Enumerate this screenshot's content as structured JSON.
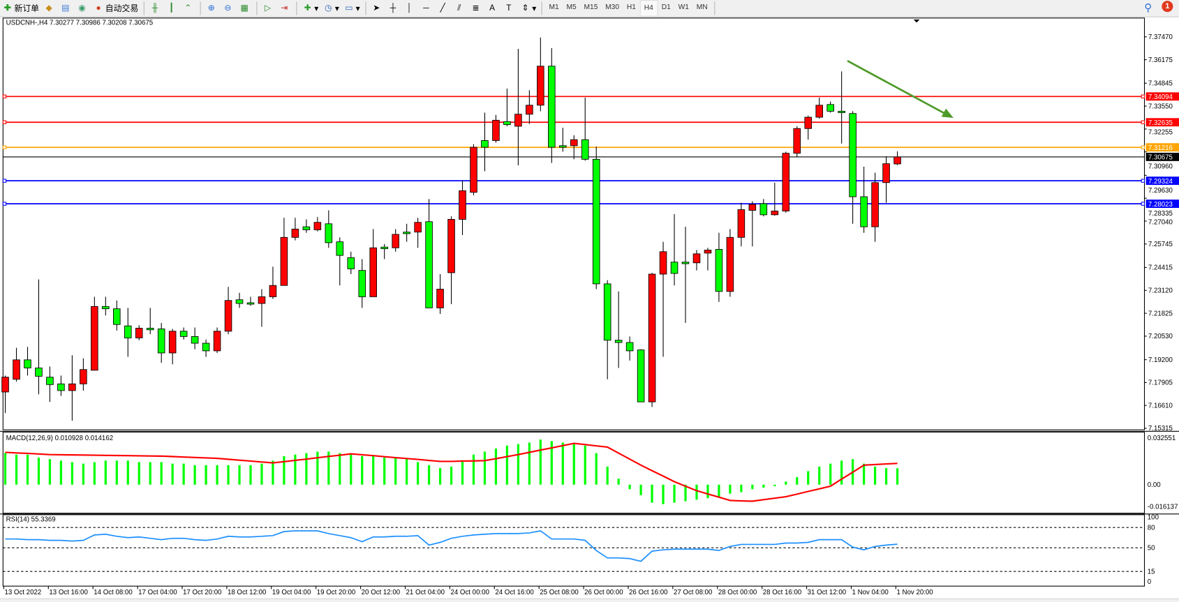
{
  "toolbar": {
    "new_order": "新订单",
    "auto_trading": "自动交易",
    "timeframes": [
      "M1",
      "M5",
      "M15",
      "M30",
      "H1",
      "H4",
      "D1",
      "W1",
      "MN"
    ],
    "active_timeframe": "H4",
    "notification_count": "1",
    "icons": [
      "new-order-icon",
      "market-watch-icon",
      "data-window-icon",
      "signals-icon",
      "auto-trading-icon",
      "bar-chart-icon",
      "candlestick-icon",
      "line-chart-icon",
      "zoom-in-icon",
      "zoom-out-icon",
      "tile-windows-icon",
      "auto-scroll-icon",
      "chart-shift-icon",
      "indicators-icon",
      "periods-icon",
      "templates-icon",
      "cursor-icon",
      "crosshair-icon",
      "vertical-line-icon",
      "horizontal-line-icon",
      "trendline-icon",
      "equidistant-channel-icon",
      "fibonacci-icon",
      "text-icon",
      "text-label-icon",
      "arrows-icon",
      "search-icon",
      "notification-icon"
    ]
  },
  "chart": {
    "header": "USDCNH-,H4  7.30277 7.30986 7.30208 7.30675",
    "price_ticks": [
      "7.37470",
      "7.36175",
      "7.34845",
      "7.33550",
      "7.32255",
      "7.30960",
      "7.29630",
      "7.28335",
      "7.27040",
      "7.25745",
      "7.24415",
      "7.23120",
      "7.21825",
      "7.20530",
      "7.19200",
      "7.17905",
      "7.16610",
      "7.15315"
    ],
    "price_range": [
      7.15315,
      7.3747
    ],
    "colors": {
      "up": "#ff0000",
      "down": "#00ff00",
      "wick": "#000000",
      "trend_arrow": "#4e9a28"
    },
    "levels": [
      {
        "price": "7.34094",
        "color": "#ff0000"
      },
      {
        "price": "7.32635",
        "color": "#ff0000"
      },
      {
        "price": "7.31216",
        "color": "#ffa500"
      },
      {
        "price": "7.29324",
        "color": "#0000ff"
      },
      {
        "price": "7.28023",
        "color": "#0000ff"
      }
    ],
    "current_price": "7.30675",
    "trend_arrow": {
      "from_price": 7.3611,
      "to_price": 7.3288
    },
    "time_labels": [
      "13 Oct 2022",
      "13 Oct 16:00",
      "14 Oct 08:00",
      "17 Oct 04:00",
      "17 Oct 20:00",
      "18 Oct 12:00",
      "19 Oct 04:00",
      "19 Oct 20:00",
      "20 Oct 12:00",
      "21 Oct 04:00",
      "24 Oct 00:00",
      "24 Oct 16:00",
      "25 Oct 08:00",
      "26 Oct 00:00",
      "26 Oct 16:00",
      "27 Oct 08:00",
      "28 Oct 00:00",
      "28 Oct 16:00",
      "31 Oct 12:00",
      "1 Nov 04:00",
      "1 Nov 20:00"
    ]
  },
  "chart_data": {
    "type": "candlestick",
    "ohlc": [
      [
        7.1737,
        7.183,
        7.1618,
        7.1821
      ],
      [
        7.1809,
        7.1987,
        7.1796,
        7.1919
      ],
      [
        7.1919,
        7.1992,
        7.183,
        7.1873
      ],
      [
        7.1873,
        7.2374,
        7.1724,
        7.1826
      ],
      [
        7.1821,
        7.1881,
        7.1681,
        7.1779
      ],
      [
        7.1783,
        7.183,
        7.1715,
        7.1745
      ],
      [
        7.1745,
        7.1945,
        7.1575,
        7.1783
      ],
      [
        7.1783,
        7.1928,
        7.1745,
        7.1864
      ],
      [
        7.186,
        7.2276,
        7.186,
        7.2221
      ],
      [
        7.2221,
        7.2276,
        7.217,
        7.2208
      ],
      [
        7.2208,
        7.2255,
        7.2085,
        7.2119
      ],
      [
        7.2111,
        7.2213,
        7.1936,
        7.2043
      ],
      [
        7.2043,
        7.2115,
        7.203,
        7.2098
      ],
      [
        7.2098,
        7.2213,
        7.2064,
        7.2089
      ],
      [
        7.2094,
        7.2128,
        7.1902,
        7.1958
      ],
      [
        7.1958,
        7.2094,
        7.1894,
        7.2081
      ],
      [
        7.2081,
        7.2102,
        7.2034,
        7.2051
      ],
      [
        7.2051,
        7.2102,
        7.1979,
        7.2013
      ],
      [
        7.2013,
        7.2034,
        7.1936,
        7.197
      ],
      [
        7.197,
        7.2102,
        7.1958,
        7.2081
      ],
      [
        7.2081,
        7.2332,
        7.2064,
        7.2255
      ],
      [
        7.2259,
        7.2298,
        7.2213,
        7.2238
      ],
      [
        7.2242,
        7.2276,
        7.2225,
        7.2234
      ],
      [
        7.2238,
        7.2319,
        7.2106,
        7.2276
      ],
      [
        7.2276,
        7.2446,
        7.2264,
        7.234
      ],
      [
        7.234,
        7.2723,
        7.234,
        7.2612
      ],
      [
        7.2612,
        7.2723,
        7.2595,
        7.2659
      ],
      [
        7.2672,
        7.2714,
        7.2638,
        7.2655
      ],
      [
        7.2655,
        7.2727,
        7.2646,
        7.2697
      ],
      [
        7.2689,
        7.2765,
        7.2553,
        7.2582
      ],
      [
        7.2587,
        7.2612,
        7.234,
        7.251
      ],
      [
        7.2497,
        7.2531,
        7.2404,
        7.2434
      ],
      [
        7.2425,
        7.2489,
        7.2213,
        7.2276
      ],
      [
        7.2276,
        7.2659,
        7.2276,
        7.2553
      ],
      [
        7.2557,
        7.2574,
        7.2489,
        7.2548
      ],
      [
        7.2553,
        7.2659,
        7.2531,
        7.2629
      ],
      [
        7.2642,
        7.2689,
        7.2587,
        7.2633
      ],
      [
        7.2642,
        7.2723,
        7.2553,
        7.2697
      ],
      [
        7.2701,
        7.2829,
        7.2213,
        7.2213
      ],
      [
        7.2213,
        7.2404,
        7.2179,
        7.2319
      ],
      [
        7.2412,
        7.2731,
        7.2234,
        7.2714
      ],
      [
        7.2714,
        7.2935,
        7.2625,
        7.2876
      ],
      [
        7.2867,
        7.3139,
        7.285,
        7.3122
      ],
      [
        7.316,
        7.3318,
        7.2986,
        7.3122
      ],
      [
        7.316,
        7.3305,
        7.3148,
        7.3275
      ],
      [
        7.3267,
        7.3454,
        7.3241,
        7.325
      ],
      [
        7.3241,
        7.3679,
        7.302,
        7.3309
      ],
      [
        7.3309,
        7.3445,
        7.3254,
        7.336
      ],
      [
        7.336,
        7.3743,
        7.3326,
        7.3581
      ],
      [
        7.3581,
        7.3683,
        7.3033,
        7.3122
      ],
      [
        7.3131,
        7.3233,
        7.3097,
        7.3122
      ],
      [
        7.3131,
        7.319,
        7.3054,
        7.3165
      ],
      [
        7.3165,
        7.3403,
        7.3046,
        7.3054
      ],
      [
        7.3054,
        7.3126,
        7.2319,
        7.2349
      ],
      [
        7.2349,
        7.237,
        7.1809,
        7.203
      ],
      [
        7.203,
        7.2306,
        7.1873,
        7.2017
      ],
      [
        7.2017,
        7.2051,
        7.1915,
        7.197
      ],
      [
        7.1975,
        7.1979,
        7.1681,
        7.1681
      ],
      [
        7.1681,
        7.2412,
        7.1652,
        7.2404
      ],
      [
        7.2404,
        7.2587,
        7.1936,
        7.2531
      ],
      [
        7.2472,
        7.2744,
        7.234,
        7.2408
      ],
      [
        7.2472,
        7.2672,
        7.2128,
        7.2463
      ],
      [
        7.2468,
        7.254,
        7.2425,
        7.2519
      ],
      [
        7.2523,
        7.2553,
        7.2425,
        7.254
      ],
      [
        7.2544,
        7.2638,
        7.2247,
        7.2306
      ],
      [
        7.2306,
        7.2659,
        7.2276,
        7.2612
      ],
      [
        7.2612,
        7.2808,
        7.2561,
        7.2769
      ],
      [
        7.2765,
        7.2816,
        7.2561,
        7.2799
      ],
      [
        7.2803,
        7.2829,
        7.2731,
        7.274
      ],
      [
        7.274,
        7.2922,
        7.2735,
        7.2761
      ],
      [
        7.2761,
        7.3097,
        7.2752,
        7.3088
      ],
      [
        7.3088,
        7.3241,
        7.3067,
        7.3228
      ],
      [
        7.3228,
        7.3301,
        7.3165,
        7.3292
      ],
      [
        7.3292,
        7.3403,
        7.3284,
        7.336
      ],
      [
        7.3364,
        7.3381,
        7.3318,
        7.3326
      ],
      [
        7.3326,
        7.3551,
        7.3143,
        7.3318
      ],
      [
        7.3313,
        7.3326,
        7.2689,
        7.2842
      ],
      [
        7.2842,
        7.3012,
        7.2638,
        7.2672
      ],
      [
        7.2672,
        7.2978,
        7.2587,
        7.2922
      ],
      [
        7.2922,
        7.3071,
        7.2808,
        7.3029
      ],
      [
        7.30277,
        7.30986,
        7.30208,
        7.30675
      ]
    ],
    "macd": {
      "label": "MACD(12,26,9) 0.010928 0.014162",
      "ticks": [
        "0.032551",
        "0.00",
        "-0.016137"
      ],
      "range": [
        -0.016137,
        0.032551
      ],
      "histogram_color": "#00ff00",
      "signal_color": "#ff0000",
      "histogram": [
        0.021,
        0.02,
        0.02,
        0.018,
        0.017,
        0.016,
        0.015,
        0.014,
        0.015,
        0.016,
        0.016,
        0.016,
        0.015,
        0.015,
        0.015,
        0.014,
        0.014,
        0.013,
        0.013,
        0.013,
        0.013,
        0.013,
        0.013,
        0.014,
        0.016,
        0.019,
        0.02,
        0.021,
        0.022,
        0.022,
        0.021,
        0.02,
        0.019,
        0.019,
        0.018,
        0.018,
        0.017,
        0.015,
        0.013,
        0.011,
        0.012,
        0.016,
        0.02,
        0.022,
        0.024,
        0.026,
        0.027,
        0.028,
        0.03,
        0.029,
        0.028,
        0.027,
        0.026,
        0.021,
        0.012,
        0.004,
        -0.003,
        -0.007,
        -0.012,
        -0.013,
        -0.012,
        -0.011,
        -0.01,
        -0.009,
        -0.008,
        -0.006,
        -0.005,
        -0.003,
        -0.002,
        -0.001,
        0.002,
        0.005,
        0.009,
        0.012,
        0.014,
        0.016,
        0.017,
        0.014,
        0.012,
        0.011,
        0.010928
      ],
      "signal": [
        0.0215,
        0.0211,
        0.0208,
        0.0204,
        0.02,
        0.0199,
        0.0198,
        0.0197,
        0.0196,
        0.0195,
        0.0194,
        0.0193,
        0.0192,
        0.0191,
        0.019,
        0.0187,
        0.0184,
        0.0181,
        0.0178,
        0.0175,
        0.0169,
        0.0163,
        0.0157,
        0.0151,
        0.0145,
        0.0153,
        0.0162,
        0.017,
        0.0179,
        0.0188,
        0.0196,
        0.0205,
        0.0199,
        0.0193,
        0.0186,
        0.018,
        0.0174,
        0.0168,
        0.0161,
        0.0155,
        0.0155,
        0.0157,
        0.0158,
        0.016,
        0.0173,
        0.0187,
        0.02,
        0.0215,
        0.023,
        0.0245,
        0.026,
        0.0275,
        0.0267,
        0.0258,
        0.025,
        0.021,
        0.017,
        0.013,
        0.0093,
        0.0057,
        0.002,
        -0.001,
        -0.004,
        -0.0062,
        -0.0083,
        -0.0105,
        -0.0108,
        -0.011,
        -0.01,
        -0.009,
        -0.008,
        -0.0063,
        -0.0045,
        -0.0028,
        -0.001,
        0.0037,
        0.0083,
        0.013,
        0.0134,
        0.0138,
        0.014162
      ]
    },
    "rsi": {
      "label": "RSI(14) 55.3369",
      "ticks": [
        "100",
        "80",
        "50",
        "15",
        "0"
      ],
      "levels": [
        80,
        50,
        15
      ],
      "range": [
        0,
        100
      ],
      "color": "#1e90ff",
      "values": [
        63,
        63,
        62,
        62,
        61,
        61,
        60,
        61,
        69,
        70,
        67,
        65,
        66,
        64,
        62,
        64,
        64,
        62,
        61,
        63,
        67,
        66,
        66,
        67,
        68,
        74,
        75,
        75,
        75,
        71,
        68,
        65,
        59,
        66,
        66,
        67,
        67,
        68,
        54,
        58,
        64,
        67,
        69,
        70,
        71,
        71,
        71,
        72,
        75,
        63,
        63,
        63,
        61,
        46,
        35,
        35,
        34,
        30,
        45,
        47,
        48,
        48,
        48,
        48,
        46,
        52,
        55,
        55,
        55,
        55,
        57,
        57,
        58,
        62,
        62,
        62,
        51,
        47,
        52,
        54,
        55.3369
      ]
    }
  }
}
